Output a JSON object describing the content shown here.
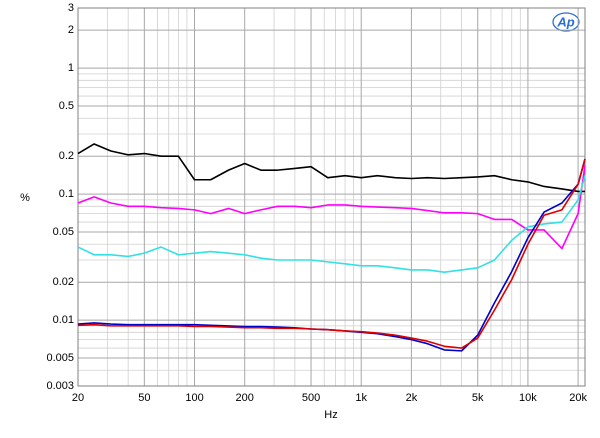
{
  "chart_data": {
    "type": "line",
    "xlabel": "Hz",
    "ylabel": "%",
    "logo": "Ap",
    "xscale": "log",
    "yscale": "log",
    "grid": true,
    "xlim": [
      20,
      22000
    ],
    "ylim": [
      0.003,
      3
    ],
    "xticks": [
      20,
      50,
      100,
      200,
      500,
      {
        "value": 1000,
        "label": "1k"
      },
      {
        "value": 2000,
        "label": "2k"
      },
      {
        "value": 5000,
        "label": "5k"
      },
      {
        "value": 10000,
        "label": "10k"
      },
      {
        "value": 20000,
        "label": "20k"
      }
    ],
    "x_minor_ticks": [
      30,
      40,
      60,
      70,
      80,
      90,
      300,
      400,
      600,
      700,
      800,
      900,
      3000,
      4000,
      6000,
      7000,
      8000,
      9000
    ],
    "yticks": [
      0.003,
      0.005,
      0.01,
      0.02,
      0.05,
      0.1,
      0.2,
      0.5,
      1,
      2,
      3
    ],
    "y_minor_ticks": [
      0.004,
      0.006,
      0.007,
      0.008,
      0.009,
      0.03,
      0.04,
      0.06,
      0.07,
      0.08,
      0.09,
      0.3,
      0.4,
      0.6,
      0.7,
      0.8,
      0.9
    ],
    "x": [
      20,
      25,
      31.5,
      40,
      50,
      63,
      80,
      100,
      125,
      160,
      200,
      250,
      315,
      400,
      500,
      630,
      800,
      1000,
      1250,
      1600,
      2000,
      2500,
      3150,
      4000,
      5000,
      6300,
      8000,
      10000,
      12500,
      16000,
      20000,
      22000
    ],
    "series": [
      {
        "name": "black",
        "color": "#000000",
        "values": [
          0.21,
          0.25,
          0.22,
          0.205,
          0.21,
          0.2,
          0.2,
          0.13,
          0.13,
          0.155,
          0.175,
          0.155,
          0.155,
          0.16,
          0.165,
          0.135,
          0.14,
          0.135,
          0.14,
          0.135,
          0.133,
          0.135,
          0.133,
          0.135,
          0.137,
          0.14,
          0.13,
          0.125,
          0.115,
          0.11,
          0.105,
          0.105
        ]
      },
      {
        "name": "magenta",
        "color": "#ff00ff",
        "values": [
          0.085,
          0.095,
          0.085,
          0.08,
          0.08,
          0.078,
          0.077,
          0.075,
          0.07,
          0.077,
          0.07,
          0.075,
          0.08,
          0.08,
          0.078,
          0.082,
          0.082,
          0.08,
          0.079,
          0.078,
          0.077,
          0.074,
          0.071,
          0.071,
          0.07,
          0.063,
          0.063,
          0.052,
          0.052,
          0.037,
          0.07,
          0.17
        ]
      },
      {
        "name": "cyan",
        "color": "#33e0e6",
        "values": [
          0.038,
          0.033,
          0.033,
          0.032,
          0.034,
          0.038,
          0.033,
          0.034,
          0.035,
          0.034,
          0.033,
          0.031,
          0.03,
          0.03,
          0.03,
          0.029,
          0.028,
          0.027,
          0.027,
          0.026,
          0.025,
          0.025,
          0.024,
          0.025,
          0.026,
          0.03,
          0.043,
          0.055,
          0.058,
          0.06,
          0.09,
          0.14
        ]
      },
      {
        "name": "blue",
        "color": "#0000cc",
        "values": [
          0.0093,
          0.0095,
          0.0093,
          0.0092,
          0.0092,
          0.0092,
          0.0092,
          0.0092,
          0.0091,
          0.009,
          0.0089,
          0.0089,
          0.0088,
          0.0087,
          0.0085,
          0.0084,
          0.0082,
          0.008,
          0.0078,
          0.0074,
          0.007,
          0.0065,
          0.0058,
          0.0057,
          0.0076,
          0.0137,
          0.0243,
          0.045,
          0.072,
          0.085,
          0.12,
          0.19
        ]
      },
      {
        "name": "red",
        "color": "#dd0000",
        "values": [
          0.0091,
          0.0092,
          0.009,
          0.009,
          0.009,
          0.009,
          0.009,
          0.0089,
          0.0089,
          0.0088,
          0.0087,
          0.0087,
          0.0086,
          0.0086,
          0.0085,
          0.0084,
          0.0082,
          0.0081,
          0.0079,
          0.0076,
          0.0072,
          0.0068,
          0.0062,
          0.006,
          0.0072,
          0.012,
          0.021,
          0.04,
          0.068,
          0.075,
          0.12,
          0.19
        ]
      }
    ]
  }
}
